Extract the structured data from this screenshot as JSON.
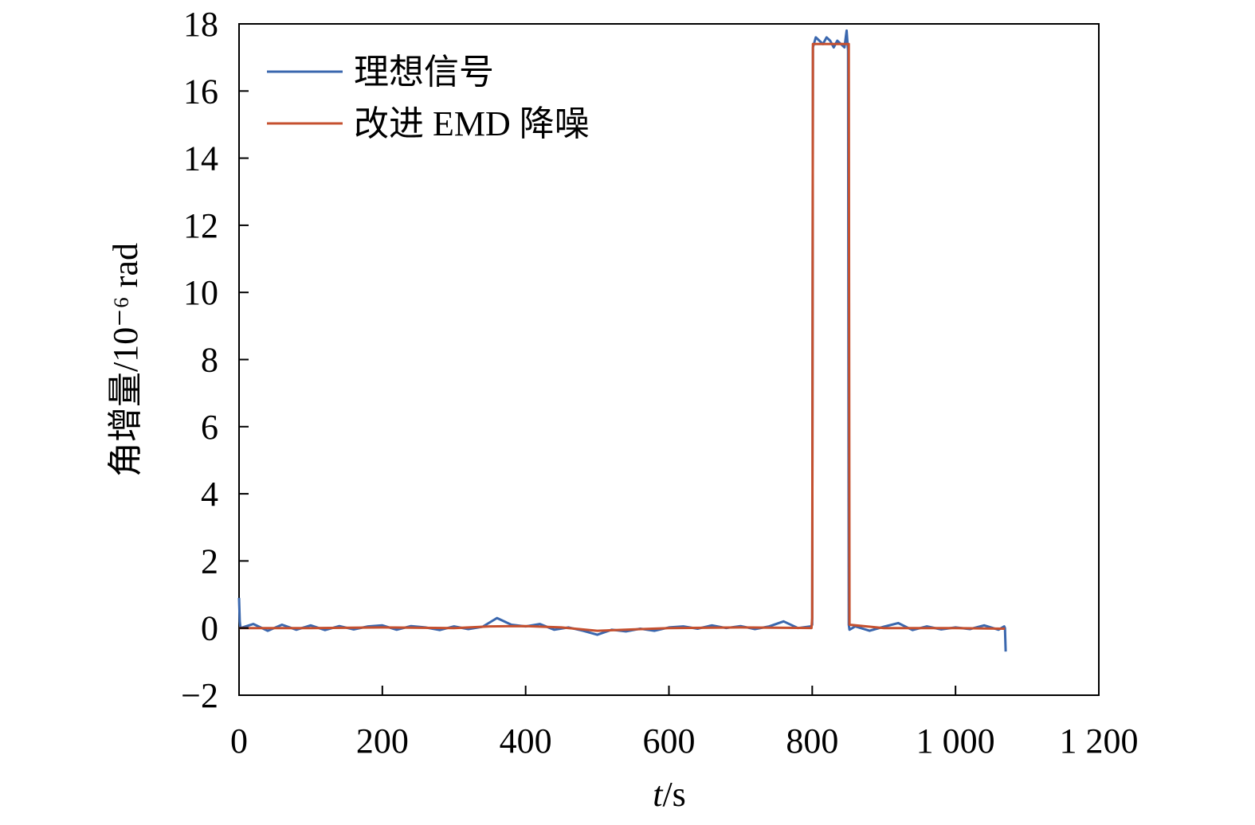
{
  "chart_data": {
    "type": "line",
    "title": "",
    "xlabel_italic": "t",
    "xlabel_rest": "/s",
    "ylabel": "角增量/10⁻⁶ rad",
    "xlim": [
      0,
      1200
    ],
    "ylim": [
      -2,
      18
    ],
    "x_ticks": [
      0,
      200,
      400,
      600,
      800,
      1000,
      1200
    ],
    "x_tick_labels": [
      "0",
      "200",
      "400",
      "600",
      "800",
      "1 000",
      "1 200"
    ],
    "y_ticks": [
      -2,
      0,
      2,
      4,
      6,
      8,
      10,
      12,
      14,
      16,
      18
    ],
    "y_tick_labels": [
      "−2",
      "0",
      "2",
      "4",
      "6",
      "8",
      "10",
      "12",
      "14",
      "16",
      "18"
    ],
    "grid": false,
    "legend_position": "top-left",
    "series": [
      {
        "name": "理想信号",
        "color": "#3a67ae",
        "x": [
          0,
          1,
          2,
          20,
          40,
          60,
          80,
          100,
          120,
          140,
          160,
          180,
          200,
          220,
          240,
          260,
          280,
          300,
          320,
          340,
          360,
          380,
          400,
          420,
          440,
          460,
          480,
          500,
          520,
          540,
          560,
          580,
          600,
          620,
          640,
          660,
          680,
          700,
          720,
          740,
          760,
          780,
          798,
          800,
          801,
          805,
          810,
          815,
          820,
          825,
          830,
          835,
          840,
          845,
          848,
          850,
          851,
          852,
          860,
          880,
          900,
          920,
          940,
          960,
          980,
          1000,
          1020,
          1040,
          1060,
          1068,
          1069,
          1070
        ],
        "y": [
          0.9,
          0.2,
          0.0,
          0.12,
          -0.08,
          0.1,
          -0.05,
          0.08,
          -0.06,
          0.06,
          -0.04,
          0.05,
          0.08,
          -0.05,
          0.06,
          0.02,
          -0.06,
          0.05,
          -0.03,
          0.04,
          0.3,
          0.1,
          0.05,
          0.12,
          -0.05,
          0.02,
          -0.08,
          -0.2,
          -0.05,
          -0.1,
          -0.02,
          -0.08,
          0.02,
          0.05,
          -0.02,
          0.08,
          0.0,
          0.06,
          -0.03,
          0.05,
          0.2,
          0.0,
          0.05,
          0.1,
          17.3,
          17.6,
          17.5,
          17.4,
          17.6,
          17.5,
          17.3,
          17.5,
          17.4,
          17.3,
          17.8,
          17.2,
          0.1,
          -0.05,
          0.05,
          -0.08,
          0.04,
          0.15,
          -0.06,
          0.05,
          -0.04,
          0.02,
          -0.03,
          0.08,
          -0.05,
          0.05,
          0.0,
          -0.7
        ]
      },
      {
        "name": "改进 EMD 降噪",
        "color": "#c5502f",
        "x": [
          0,
          100,
          200,
          300,
          350,
          400,
          450,
          500,
          550,
          600,
          700,
          799,
          800,
          801,
          850,
          851,
          852,
          900,
          1000,
          1069
        ],
        "y": [
          0.0,
          0.0,
          0.02,
          0.0,
          0.05,
          0.06,
          0.02,
          -0.08,
          -0.04,
          0.0,
          0.02,
          0.0,
          0.3,
          17.4,
          17.4,
          17.4,
          0.1,
          0.0,
          0.0,
          -0.02
        ]
      }
    ]
  }
}
